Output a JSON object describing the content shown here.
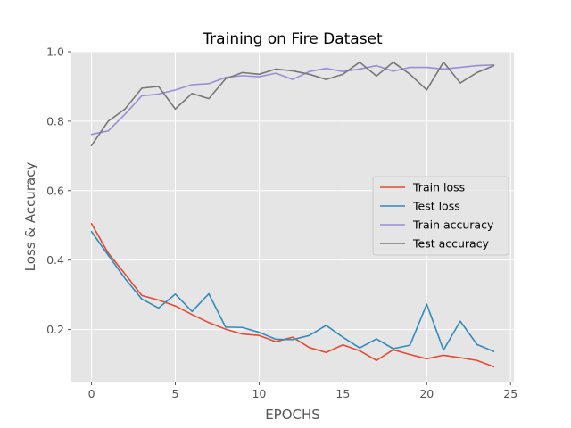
{
  "chart_data": {
    "type": "line",
    "title": "Training on Fire Dataset",
    "xlabel": "EPOCHS",
    "ylabel": "Loss & Accuracy",
    "xlim": [
      -1.2,
      25.2
    ],
    "ylim": [
      0.05,
      1.0
    ],
    "xticks": [
      0,
      5,
      10,
      15,
      20,
      25
    ],
    "yticks": [
      0.2,
      0.4,
      0.6,
      0.8,
      1.0
    ],
    "xtick_labels": [
      "0",
      "5",
      "10",
      "15",
      "20",
      "25"
    ],
    "ytick_labels": [
      "0.2",
      "0.4",
      "0.6",
      "0.8",
      "1.0"
    ],
    "grid": true,
    "legend_position": "center-right",
    "background": "#e5e5e5",
    "x": [
      0,
      1,
      2,
      3,
      4,
      5,
      6,
      7,
      8,
      9,
      10,
      11,
      12,
      13,
      14,
      15,
      16,
      17,
      18,
      19,
      20,
      21,
      22,
      23,
      24
    ],
    "series": [
      {
        "name": "Train loss",
        "color": "#e24a33",
        "values": [
          0.505,
          0.42,
          0.36,
          0.298,
          0.285,
          0.268,
          0.243,
          0.22,
          0.201,
          0.187,
          0.183,
          0.165,
          0.178,
          0.148,
          0.134,
          0.156,
          0.139,
          0.111,
          0.142,
          0.128,
          0.116,
          0.126,
          0.119,
          0.111,
          0.093
        ]
      },
      {
        "name": "Test loss",
        "color": "#348abd",
        "values": [
          0.482,
          0.414,
          0.347,
          0.288,
          0.262,
          0.302,
          0.252,
          0.303,
          0.207,
          0.206,
          0.192,
          0.172,
          0.171,
          0.183,
          0.212,
          0.178,
          0.147,
          0.173,
          0.145,
          0.155,
          0.273,
          0.141,
          0.224,
          0.157,
          0.137
        ]
      },
      {
        "name": "Train accuracy",
        "color": "#988ed5",
        "values": [
          0.762,
          0.772,
          0.82,
          0.873,
          0.878,
          0.89,
          0.905,
          0.908,
          0.926,
          0.931,
          0.928,
          0.938,
          0.92,
          0.943,
          0.952,
          0.943,
          0.95,
          0.96,
          0.944,
          0.955,
          0.955,
          0.95,
          0.955,
          0.96,
          0.962
        ]
      },
      {
        "name": "Test accuracy",
        "color": "#777777",
        "values": [
          0.73,
          0.8,
          0.835,
          0.895,
          0.9,
          0.835,
          0.88,
          0.865,
          0.922,
          0.94,
          0.935,
          0.95,
          0.945,
          0.935,
          0.92,
          0.935,
          0.97,
          0.93,
          0.97,
          0.935,
          0.89,
          0.97,
          0.91,
          0.94,
          0.96
        ]
      }
    ]
  }
}
